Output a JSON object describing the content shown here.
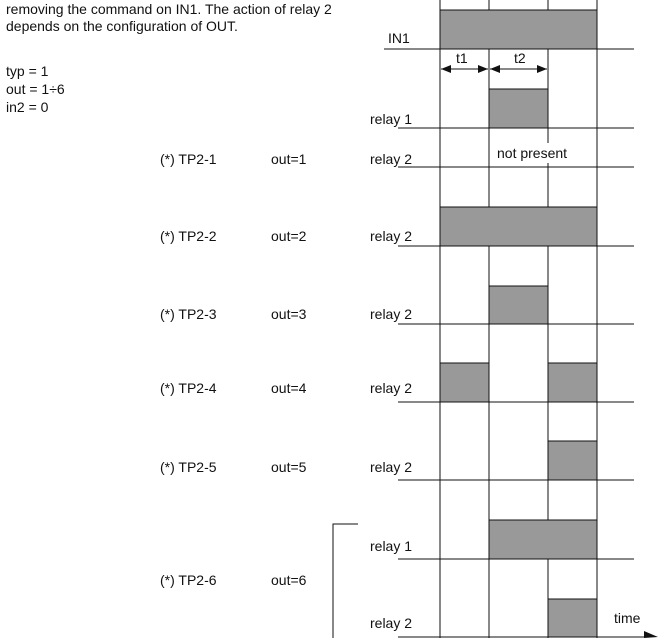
{
  "intro": {
    "lines": [
      "removing the command on IN1. The action of relay 2",
      "depends on the configuration of OUT."
    ]
  },
  "params": [
    "typ = 1",
    "out = 1÷6",
    "in2 = 0"
  ],
  "top_signal": {
    "label": "IN1"
  },
  "intervals": {
    "t1": "t1",
    "t2": "t2"
  },
  "note": "not present",
  "time_label": "time",
  "modes": [
    {
      "code": "(*) TP2-1",
      "out": "out=1"
    },
    {
      "code": "(*) TP2-2",
      "out": "out=2"
    },
    {
      "code": "(*) TP2-3",
      "out": "out=3"
    },
    {
      "code": "(*) TP2-4",
      "out": "out=4"
    },
    {
      "code": "(*) TP2-5",
      "out": "out=5"
    },
    {
      "code": "(*) TP2-6",
      "out": "out=6"
    }
  ],
  "rows": [
    {
      "label": "relay 1"
    },
    {
      "label": "relay 2"
    },
    {
      "label": "relay 2"
    },
    {
      "label": "relay 2"
    },
    {
      "label": "relay 2"
    },
    {
      "label": "relay 2"
    },
    {
      "label": "relay 1"
    },
    {
      "label": "relay 2"
    }
  ],
  "colors": {
    "pulse_fill": "#999999",
    "line": "#111111"
  }
}
